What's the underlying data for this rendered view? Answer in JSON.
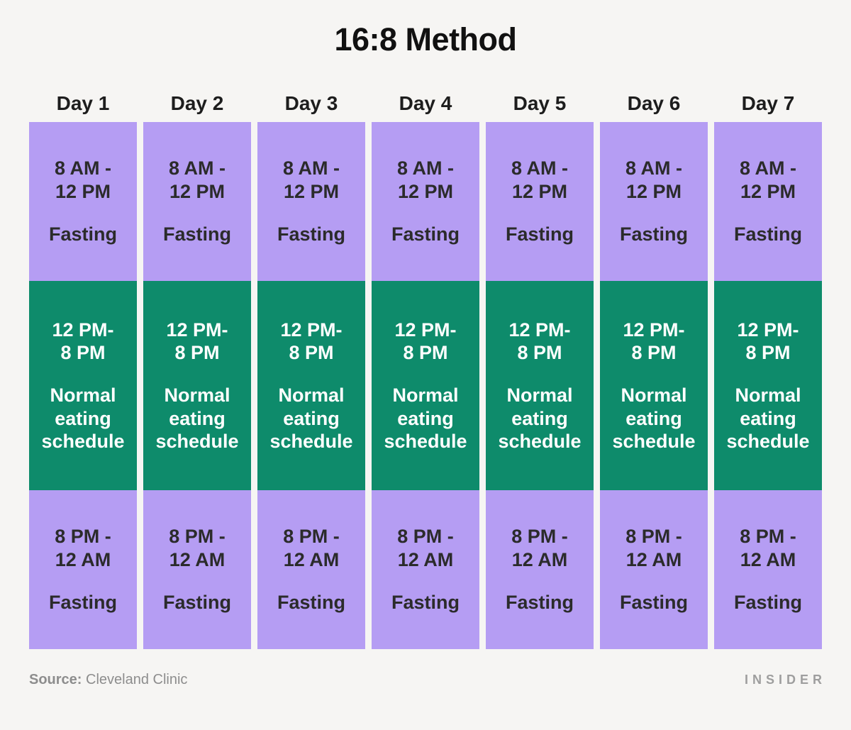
{
  "title": "16:8 Method",
  "days": [
    {
      "label": "Day 1"
    },
    {
      "label": "Day 2"
    },
    {
      "label": "Day 3"
    },
    {
      "label": "Day 4"
    },
    {
      "label": "Day 5"
    },
    {
      "label": "Day 6"
    },
    {
      "label": "Day 7"
    }
  ],
  "blocks": [
    {
      "type": "fasting",
      "time_lines": [
        "8 AM -",
        "12 PM"
      ],
      "label_lines": [
        "Fasting"
      ]
    },
    {
      "type": "eating",
      "time_lines": [
        "12 PM-",
        "8 PM"
      ],
      "label_lines": [
        "Normal",
        "eating",
        "schedule"
      ]
    },
    {
      "type": "fasting",
      "time_lines": [
        "8 PM -",
        "12 AM"
      ],
      "label_lines": [
        "Fasting"
      ]
    }
  ],
  "footer": {
    "source_label": "Source:",
    "source_value": "Cleveland Clinic",
    "brand": "INSIDER"
  },
  "colors": {
    "background": "#f6f5f3",
    "fasting_block": "#b59df3",
    "eating_block": "#0e8b6b",
    "fasting_text": "#2b2b2b",
    "eating_text": "#ffffff",
    "title_text": "#111111",
    "day_header_text": "#1d1d1d",
    "source_text": "#8d8d8d",
    "brand_text": "#9e9e9e"
  },
  "chart_data": {
    "type": "table",
    "title": "16:8 Method",
    "columns": [
      "Day 1",
      "Day 2",
      "Day 3",
      "Day 4",
      "Day 5",
      "Day 6",
      "Day 7"
    ],
    "rows": [
      {
        "time_range": "8 AM - 12 PM",
        "activity": "Fasting",
        "applies_to_all_days": true
      },
      {
        "time_range": "12 PM - 8 PM",
        "activity": "Normal eating schedule",
        "applies_to_all_days": true
      },
      {
        "time_range": "8 PM - 12 AM",
        "activity": "Fasting",
        "applies_to_all_days": true
      }
    ],
    "legend_position": "none",
    "source": "Cleveland Clinic"
  }
}
